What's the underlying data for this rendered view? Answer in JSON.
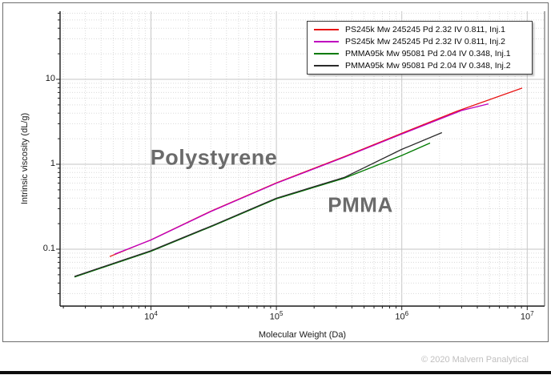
{
  "footer": {
    "copyright": "© 2020 Malvern Panalytical"
  },
  "chart_data": {
    "type": "line",
    "title": "",
    "xlabel": "Molecular Weight (Da)",
    "ylabel": "Intrinsic viscosity (dL/g)",
    "x_scale": "log",
    "y_scale": "log",
    "x_range": [
      1884,
      13760000
    ],
    "y_range": [
      0.0214,
      63.4
    ],
    "grid": true,
    "legend_position": "top-right",
    "x_major_ticks": [
      {
        "value": 10000,
        "base": "10",
        "exp": "4"
      },
      {
        "value": 100000,
        "base": "10",
        "exp": "5"
      },
      {
        "value": 1000000,
        "base": "10",
        "exp": "6"
      },
      {
        "value": 10000000,
        "base": "10",
        "exp": "7"
      }
    ],
    "y_major_ticks": [
      {
        "value": 10,
        "label": "10"
      },
      {
        "value": 1,
        "label": "1"
      },
      {
        "value": 0.1,
        "label": "0.1"
      }
    ],
    "series": [
      {
        "name": "PS245k Mw 245245 Pd 2.32 IV 0.811, Inj.1",
        "color": "#e81313",
        "points": [
          [
            4690,
            0.082
          ],
          [
            10000,
            0.129
          ],
          [
            30000,
            0.28
          ],
          [
            100000,
            0.605
          ],
          [
            348000,
            1.23
          ],
          [
            1000000,
            2.32
          ],
          [
            2730000,
            4.2
          ],
          [
            9120000,
            7.9
          ]
        ]
      },
      {
        "name": "PS245k Mw 245245 Pd 2.32 IV 0.811, Inj.2",
        "color": "#bf00bf",
        "points": [
          [
            5120,
            0.0875
          ],
          [
            10000,
            0.1285
          ],
          [
            30000,
            0.278
          ],
          [
            100000,
            0.598
          ],
          [
            348000,
            1.21
          ],
          [
            1000000,
            2.27
          ],
          [
            3000000,
            4.3
          ],
          [
            4910000,
            5.15
          ]
        ]
      },
      {
        "name": "PMMA95k Mw 95081 Pd 2.04 IV 0.348, Inj.1",
        "color": "#007a00",
        "points": [
          [
            2455,
            0.047
          ],
          [
            10000,
            0.0945
          ],
          [
            31600,
            0.19
          ],
          [
            100000,
            0.392
          ],
          [
            348000,
            0.685
          ],
          [
            1000000,
            1.27
          ],
          [
            1680000,
            1.78
          ]
        ]
      },
      {
        "name": "PMMA95k Mw 95081 Pd 2.04 IV 0.348, Inj.2",
        "color": "#2b2b2b",
        "points": [
          [
            2455,
            0.0478
          ],
          [
            10000,
            0.096
          ],
          [
            31600,
            0.193
          ],
          [
            100000,
            0.399
          ],
          [
            348000,
            0.7
          ],
          [
            1000000,
            1.5
          ],
          [
            2090000,
            2.36
          ]
        ]
      }
    ],
    "annotations": [
      {
        "text": "Polystyrene"
      },
      {
        "text": "PMMA"
      }
    ]
  }
}
